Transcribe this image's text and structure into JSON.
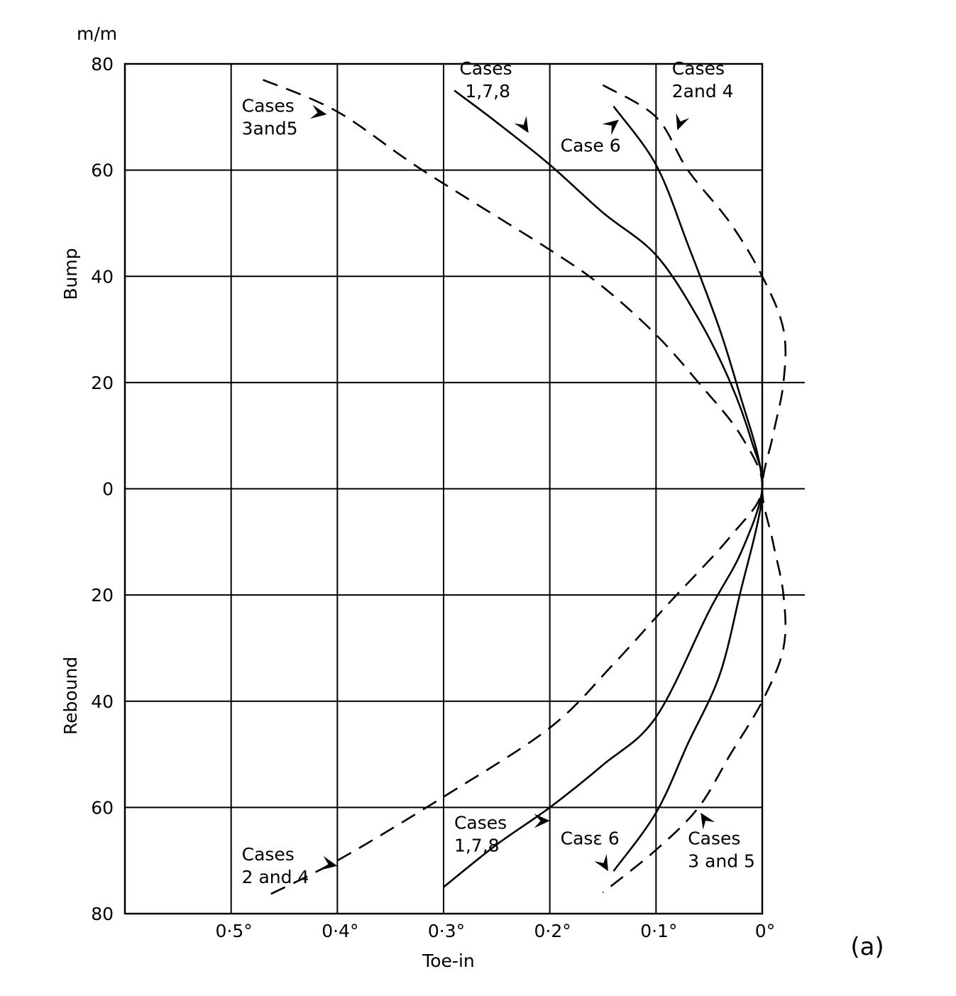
{
  "chart_data": {
    "type": "line",
    "panel_label": "(a)",
    "xlabel": "Toe-in",
    "unit_label": "m/m",
    "ylabel_upper": "Bump",
    "ylabel_lower": "Rebound",
    "xlim": [
      0.6,
      0
    ],
    "ylim": [
      -80,
      80
    ],
    "x_ticks": [
      {
        "value": 0.5,
        "label": "0·5°"
      },
      {
        "value": 0.4,
        "label": "0·4°"
      },
      {
        "value": 0.3,
        "label": "0·3°"
      },
      {
        "value": 0.2,
        "label": "0·2°"
      },
      {
        "value": 0.1,
        "label": "0·1°"
      },
      {
        "value": 0.0,
        "label": "0°"
      }
    ],
    "y_ticks": [
      {
        "value": 80,
        "label": "80"
      },
      {
        "value": 60,
        "label": "60"
      },
      {
        "value": 40,
        "label": "40"
      },
      {
        "value": 20,
        "label": "20"
      },
      {
        "value": 0,
        "label": "0"
      },
      {
        "value": -20,
        "label": "20"
      },
      {
        "value": -40,
        "label": "40"
      },
      {
        "value": -60,
        "label": "60"
      },
      {
        "value": -80,
        "label": "80"
      }
    ],
    "grid": true,
    "series": [
      {
        "style": "solid",
        "points": [
          [
            0.29,
            75
          ],
          [
            0.25,
            69
          ],
          [
            0.2,
            61
          ],
          [
            0.15,
            52
          ],
          [
            0.1,
            44
          ],
          [
            0.06,
            32
          ],
          [
            0.03,
            20
          ],
          [
            0.01,
            9
          ],
          [
            0,
            0
          ],
          [
            0.02,
            -12
          ],
          [
            0.05,
            -23
          ],
          [
            0.1,
            -43
          ],
          [
            0.15,
            -52
          ],
          [
            0.2,
            -60
          ],
          [
            0.25,
            -67
          ],
          [
            0.3,
            -75
          ]
        ]
      },
      {
        "style": "solid",
        "points": [
          [
            0.14,
            72
          ],
          [
            0.1,
            61
          ],
          [
            0.07,
            46
          ],
          [
            0.04,
            30
          ],
          [
            0.02,
            17
          ],
          [
            0.005,
            7
          ],
          [
            0,
            0
          ],
          [
            0.005,
            -7
          ],
          [
            0.02,
            -19
          ],
          [
            0.04,
            -35
          ],
          [
            0.07,
            -48
          ],
          [
            0.1,
            -61
          ],
          [
            0.14,
            -72
          ]
        ]
      },
      {
        "style": "dashed",
        "points": [
          [
            0.47,
            77
          ],
          [
            0.4,
            71
          ],
          [
            0.32,
            60
          ],
          [
            0.2,
            45
          ],
          [
            0.15,
            38
          ],
          [
            0.1,
            29
          ],
          [
            0.06,
            20
          ],
          [
            0.02,
            10
          ],
          [
            0,
            0
          ],
          [
            0.03,
            -9
          ],
          [
            0.09,
            -22
          ],
          [
            0.14,
            -33
          ],
          [
            0.2,
            -45
          ],
          [
            0.3,
            -58
          ],
          [
            0.4,
            -70
          ],
          [
            0.47,
            -77
          ]
        ]
      },
      {
        "style": "dashed",
        "points": [
          [
            0.15,
            76
          ],
          [
            0.1,
            70
          ],
          [
            0.07,
            60
          ],
          [
            0.03,
            50
          ],
          [
            0,
            40
          ],
          [
            -0.02,
            30
          ],
          [
            -0.02,
            20
          ],
          [
            -0.01,
            10
          ],
          [
            0,
            0
          ],
          [
            -0.01,
            -10
          ],
          [
            -0.02,
            -20
          ],
          [
            -0.02,
            -30
          ],
          [
            0,
            -40
          ],
          [
            0.03,
            -50
          ],
          [
            0.06,
            -60
          ],
          [
            0.1,
            -68
          ],
          [
            0.15,
            -76
          ]
        ]
      }
    ],
    "annotations": [
      {
        "lines": [
          "Cases",
          "3and5"
        ],
        "anchor": [
          0.49,
          71
        ],
        "arrow_to": [
          0.41,
          70.5
        ]
      },
      {
        "lines": [
          "Cases",
          " 1,7,8"
        ],
        "anchor": [
          0.285,
          78
        ],
        "arrow_to": [
          0.22,
          67
        ]
      },
      {
        "lines": [
          "Case 6"
        ],
        "anchor": [
          0.19,
          63.5
        ],
        "arrow_to": [
          0.135,
          69.5
        ]
      },
      {
        "lines": [
          "Cases",
          "2and 4"
        ],
        "anchor": [
          0.085,
          78
        ],
        "arrow_to": [
          0.08,
          67.5
        ]
      },
      {
        "lines": [
          "Cases",
          "2 and 4"
        ],
        "anchor": [
          0.49,
          -70
        ],
        "arrow_to": [
          0.4,
          -71
        ]
      },
      {
        "lines": [
          "Cases",
          "1,7,8"
        ],
        "anchor": [
          0.29,
          -64
        ],
        "arrow_to": [
          0.2,
          -62.5
        ]
      },
      {
        "lines": [
          "Casε 6"
        ],
        "anchor": [
          0.19,
          -67
        ],
        "arrow_to": [
          0.145,
          -72
        ]
      },
      {
        "lines": [
          "Cases",
          "3 and 5"
        ],
        "anchor": [
          0.07,
          -67
        ],
        "arrow_to": [
          0.058,
          -61
        ]
      }
    ]
  }
}
